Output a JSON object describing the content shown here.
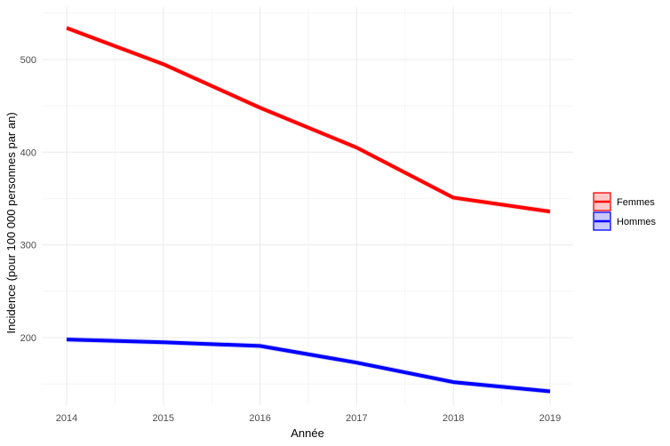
{
  "chart_data": {
    "type": "line",
    "title": "",
    "xlabel": "Année",
    "ylabel": "Incidence (pour 100 000 personnes par an)",
    "x": [
      2014,
      2015,
      2016,
      2017,
      2018,
      2019
    ],
    "categories": [
      "2014",
      "2015",
      "2016",
      "2017",
      "2018",
      "2019"
    ],
    "series": [
      {
        "name": "Femmes",
        "color": "#ff0000",
        "fill": "#ffc8c8",
        "values": [
          534,
          495,
          448,
          405,
          351,
          336
        ]
      },
      {
        "name": "Hommes",
        "color": "#0000ff",
        "fill": "#c8c8ff",
        "values": [
          198,
          195,
          191,
          173,
          152,
          142
        ]
      }
    ],
    "y_ticks": [
      200,
      300,
      400,
      500
    ],
    "ylim": [
      122,
      552
    ],
    "xlim": [
      2013.75,
      2019.25
    ],
    "grid": true,
    "legend_position": "right"
  },
  "axes": {
    "x_title": "Année",
    "y_title": "Incidence (pour 100 000 personnes par an)",
    "x_ticks": [
      "2014",
      "2015",
      "2016",
      "2017",
      "2018",
      "2019"
    ],
    "y_ticks": [
      "200",
      "300",
      "400",
      "500"
    ]
  },
  "legend": {
    "items": [
      {
        "label": "Femmes",
        "color": "#ff0000",
        "fill": "#ffc8c8"
      },
      {
        "label": "Hommes",
        "color": "#0000ff",
        "fill": "#c8c8ff"
      }
    ]
  }
}
